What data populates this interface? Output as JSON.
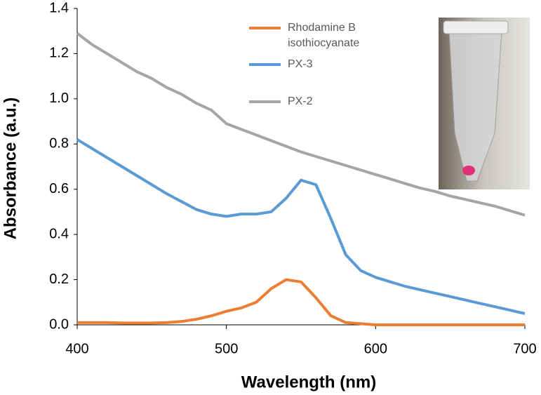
{
  "chart_data": {
    "type": "line",
    "xlabel": "Wavelength (nm)",
    "ylabel": "Absorbance (a.u.)",
    "x": [
      400,
      410,
      420,
      430,
      440,
      450,
      460,
      470,
      480,
      490,
      500,
      510,
      520,
      530,
      540,
      550,
      560,
      570,
      580,
      590,
      600,
      610,
      620,
      630,
      640,
      650,
      660,
      670,
      680,
      690,
      700
    ],
    "series": [
      {
        "name": "Rhodamine B isothiocyanate",
        "color": "#ed7d31",
        "values": [
          0.01,
          0.01,
          0.01,
          0.008,
          0.008,
          0.008,
          0.01,
          0.015,
          0.025,
          0.04,
          0.06,
          0.075,
          0.1,
          0.16,
          0.2,
          0.19,
          0.12,
          0.04,
          0.01,
          0.005,
          0,
          0,
          0,
          0,
          0,
          0,
          0,
          0,
          0,
          0,
          0
        ]
      },
      {
        "name": "PX-3",
        "color": "#5b9bd5",
        "values": [
          0.82,
          0.78,
          0.74,
          0.7,
          0.66,
          0.62,
          0.58,
          0.545,
          0.51,
          0.49,
          0.48,
          0.49,
          0.49,
          0.5,
          0.56,
          0.64,
          0.62,
          0.47,
          0.31,
          0.24,
          0.21,
          0.19,
          0.17,
          0.155,
          0.14,
          0.125,
          0.11,
          0.095,
          0.08,
          0.065,
          0.05
        ]
      },
      {
        "name": "PX-2",
        "color": "#a5a5a5",
        "values": [
          1.29,
          1.24,
          1.2,
          1.16,
          1.12,
          1.09,
          1.05,
          1.02,
          0.98,
          0.95,
          0.89,
          0.865,
          0.84,
          0.815,
          0.79,
          0.765,
          0.745,
          0.725,
          0.705,
          0.685,
          0.665,
          0.645,
          0.625,
          0.605,
          0.59,
          0.57,
          0.555,
          0.54,
          0.525,
          0.505,
          0.485
        ]
      }
    ],
    "xlim": [
      400,
      700
    ],
    "xticks": [
      400,
      500,
      600,
      700
    ],
    "ylim": [
      0,
      1.4
    ],
    "yticks": [
      {
        "value": 0,
        "label": "0.0"
      },
      0.2,
      0.4,
      0.6,
      0.8,
      {
        "value": 1,
        "label": "1.0"
      },
      1.2,
      1.4
    ],
    "grid": false
  }
}
